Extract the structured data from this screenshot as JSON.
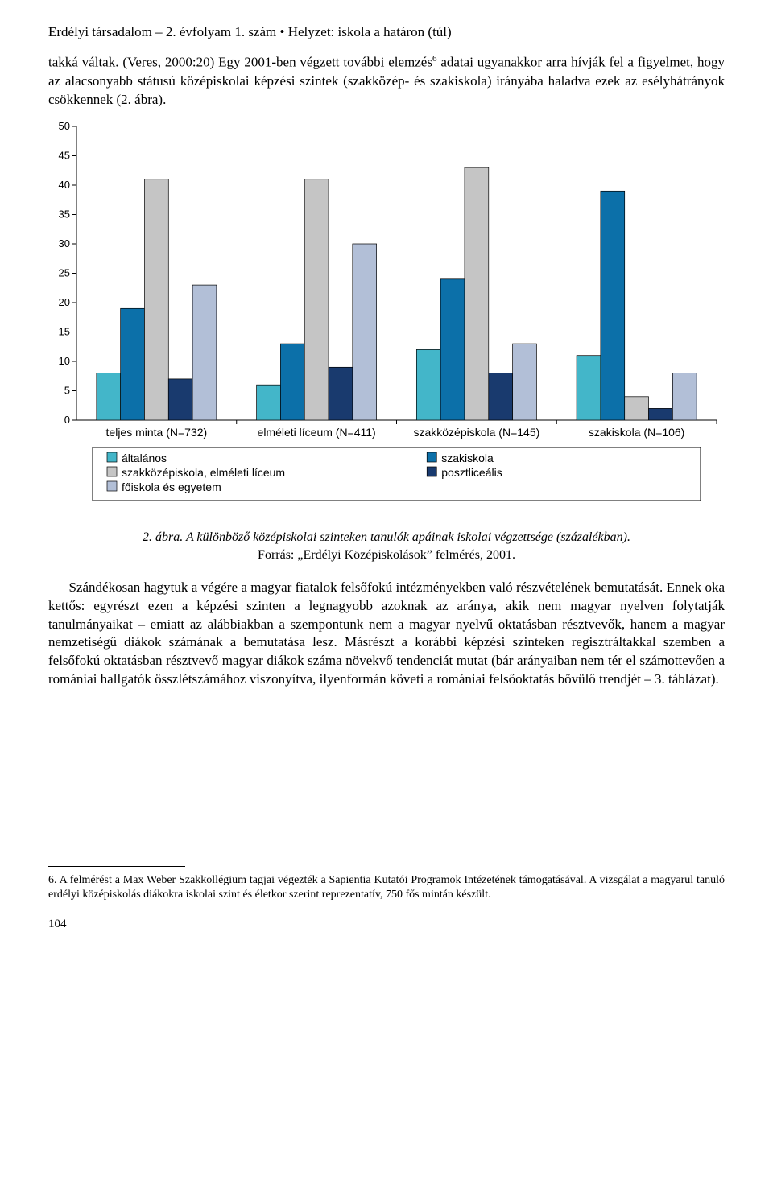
{
  "header": "Erdélyi társadalom – 2. évfolyam 1. szám • Helyzet: iskola a határon (túl)",
  "para1_html": "takká váltak. (Veres, 2000:20) Egy 2001-ben végzett további elemzés<span class=\"sup\">6</span> adatai ugyanakkor arra hívják fel a figyelmet, hogy az alacsonyabb státusú középiskolai képzési szintek (szakközép- és szakiskola) irányába haladva ezek az esélyhátrányok csökkennek (2. ábra).",
  "caption_ital": "2. ábra. A különböző középiskolai szinteken tanulók apáinak iskolai végzettsége (százalékban).",
  "caption_plain": "Forrás: „Erdélyi Középiskolások” felmérés, 2001.",
  "para2": "Szándékosan hagytuk a végére a magyar fiatalok felsőfokú intézményekben való részvételének bemutatását. Ennek oka kettős: egyrészt ezen a képzési szinten a legnagyobb azoknak az aránya, akik nem magyar nyelven folytatják tanulmányaikat – emiatt az alábbiakban a szempontunk nem a magyar nyelvű oktatásban résztvevők, hanem a magyar nemzetiségű diákok számának a bemutatása lesz. Másrészt a korábbi képzési szinteken regisztráltakkal szemben a felsőfokú oktatásban résztvevő magyar diákok száma növekvő tendenciát mutat (bár arányaiban nem tér el számottevően a romániai hallgatók összlétszámához viszonyítva, ilyenformán követi a romániai felsőoktatás bővülő trendjét – 3. táblázat).",
  "footnote": "6. A felmérést a Max Weber Szakkollégium tagjai végezték a Sapientia Kutatói Programok Intézetének támogatásával. A vizsgálat a magyarul tanuló erdélyi középiskolás diákokra iskolai szint és életkor szerint reprezentatív, 750 fős mintán készült.",
  "page_number": "104",
  "chart": {
    "type": "bar",
    "ylim": [
      0,
      50
    ],
    "ytick_step": 5,
    "y_ticks": [
      0,
      5,
      10,
      15,
      20,
      25,
      30,
      35,
      40,
      45,
      50
    ],
    "categories": [
      "teljes minta (N=732)",
      "elméleti líceum (N=411)",
      "szakközépiskola (N=145)",
      "szakiskola (N=106)"
    ],
    "series": [
      {
        "name": "általános",
        "color": "#43b6c9",
        "values": [
          8,
          6,
          12,
          11
        ]
      },
      {
        "name": "szakiskola",
        "color": "#0c70a9",
        "values": [
          19,
          13,
          24,
          39
        ]
      },
      {
        "name": "szakközépiskola, elméleti líceum",
        "color": "#c5c5c5",
        "values": [
          41,
          41,
          43,
          4
        ]
      },
      {
        "name": "posztliceális",
        "color": "#193a6e",
        "values": [
          7,
          9,
          8,
          2
        ]
      },
      {
        "name": "főiskola és egyetem",
        "color": "#b2bfd7",
        "values": [
          23,
          30,
          13,
          8
        ]
      }
    ],
    "plot_bg": "#ffffff",
    "axis_color": "#000000",
    "tick_fontsize": 13,
    "category_fontsize": 14,
    "legend_fontsize": 14,
    "bar_group_gap_ratio": 0.25,
    "bar_inner_gap": 0,
    "stroke_color": "#000000",
    "stroke_width": 0.7,
    "legend_box_size": 12
  }
}
